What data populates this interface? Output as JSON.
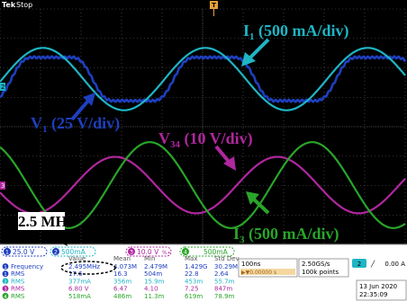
{
  "scope": {
    "brand": "Tek",
    "status": "Stop",
    "trigger_marker": "T",
    "ground_markers": {
      "ch2": "2",
      "ch3": "3"
    },
    "timebase": "100ns",
    "trigger_pos": "▶▼0.00000 s",
    "sample_rate": "2.50GS/s",
    "record_length": "100k points",
    "trigger_ch": "2",
    "trigger_slope": "╱",
    "trigger_level": "0.00 A",
    "date": "13 Jun 2020",
    "time": "22:35:09"
  },
  "channel_settings": [
    {
      "num": "1",
      "scale": "25.0 V",
      "color": "#1e3fbf"
    },
    {
      "num": "2",
      "scale": "500mA",
      "color": "#1fb5c4"
    },
    {
      "num": "3",
      "scale": "10.0 V",
      "color": "#b0279e",
      "suffix": "%∙"
    },
    {
      "num": "4",
      "scale": "500mA",
      "color": "#2aa52a"
    }
  ],
  "measurements": {
    "headers": [
      "Value",
      "Mean",
      "Min",
      "Max",
      "Std Dev"
    ],
    "rows": [
      {
        "ch": "1",
        "color": "#1e3fbf",
        "name": "Frequency",
        "values": [
          "2.495MHz",
          "4.073M",
          "2.479M",
          "1.429G",
          "30.29M"
        ]
      },
      {
        "ch": "1",
        "color": "#1e3fbf",
        "name": "RMS",
        "values": [
          "17.6",
          "16.3",
          "504m",
          "22.8",
          "2.64"
        ]
      },
      {
        "ch": "2",
        "color": "#1fb5c4",
        "name": "RMS",
        "values": [
          "377mA",
          "356m",
          "15.9m",
          "453m",
          "55.7m"
        ]
      },
      {
        "ch": "3",
        "color": "#b0279e",
        "name": "RMS",
        "values": [
          "6.80 V",
          "6.47",
          "4.10",
          "7.25",
          "847m"
        ]
      },
      {
        "ch": "4",
        "color": "#2aa52a",
        "name": "RMS",
        "values": [
          "518mA",
          "486m",
          "11.3m",
          "619m",
          "78.9m"
        ]
      }
    ]
  },
  "annotations": {
    "i1": {
      "base": "I",
      "sub": "1",
      "rest": " (500 mA/div)",
      "color": "#1fb5c4"
    },
    "v1": {
      "base": "V",
      "sub": "1",
      "rest": " (25 V/div)",
      "color": "#1e3fbf"
    },
    "v34": {
      "base": "V",
      "sub": "34",
      "rest": " (10 V/div)",
      "color": "#b0279e"
    },
    "i3": {
      "base": "I",
      "sub": "3",
      "rest": " (500 mA/div)",
      "color": "#2aa52a"
    },
    "freq": {
      "text": "2.5 MHz",
      "color": "#000000"
    }
  },
  "chart_data": {
    "type": "line",
    "x_unit": "s",
    "x_per_div": 1e-07,
    "divisions": 10,
    "frequency_hz": 2495000,
    "grid": true,
    "series": [
      {
        "name": "V1",
        "channel": 1,
        "unit": "V",
        "scale_per_div": 25,
        "amplitude": 25,
        "phase_deg": -25,
        "rms": 17.6,
        "color": "#1e3fbf",
        "shape": "square-ish"
      },
      {
        "name": "I1",
        "channel": 2,
        "unit": "A",
        "scale_per_div": 0.5,
        "amplitude": 0.53,
        "phase_deg": -5,
        "rms": 0.377,
        "color": "#1fb5c4",
        "shape": "sine"
      },
      {
        "name": "V34",
        "channel": 3,
        "unit": "V",
        "scale_per_div": 10,
        "amplitude": 9.6,
        "phase_deg": 195,
        "rms": 6.8,
        "color": "#b0279e",
        "shape": "sine"
      },
      {
        "name": "I3",
        "channel": 4,
        "unit": "A",
        "scale_per_div": 0.5,
        "amplitude": 0.73,
        "phase_deg": 118,
        "rms": 0.518,
        "color": "#2aa52a",
        "shape": "sine"
      }
    ]
  }
}
